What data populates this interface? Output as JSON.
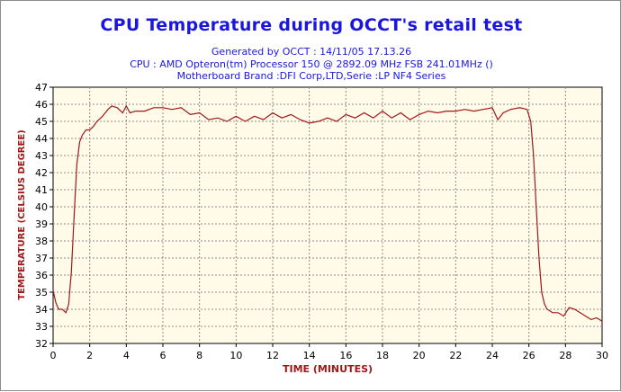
{
  "header": {
    "title": "CPU Temperature during OCCT's retail test",
    "line1": "Generated by OCCT : 14/11/05 17.13.26",
    "line2": "CPU : AMD Opteron(tm) Processor 150     @ 2892.09 MHz FSB 241.01MHz ()",
    "line3": "Motherboard Brand :DFI Corp,LTD,Serie :LP NF4 Series"
  },
  "colors": {
    "title": "#1a16e0",
    "axis_label": "#a01818",
    "series": "#a01818",
    "plot_background": "#fffbe8",
    "grid": "#8c8c8c"
  },
  "chart_data": {
    "type": "line",
    "title": "CPU Temperature during OCCT's retail test",
    "xlabel": "TIME (MINUTES)",
    "ylabel": "TEMPERATURE (CELSIUS DEGREE)",
    "xlim": [
      0,
      30
    ],
    "ylim": [
      32,
      47
    ],
    "xticks": [
      0,
      2,
      4,
      6,
      8,
      10,
      12,
      14,
      16,
      18,
      20,
      22,
      24,
      26,
      28,
      30
    ],
    "yticks": [
      32,
      33,
      34,
      35,
      36,
      37,
      38,
      39,
      40,
      41,
      42,
      43,
      44,
      45,
      46,
      47
    ],
    "grid": true,
    "series": [
      {
        "x": [
          0,
          0.15,
          0.3,
          0.5,
          0.7,
          0.85,
          1.0,
          1.15,
          1.3,
          1.45,
          1.6,
          1.8,
          2.0,
          2.2,
          2.4,
          2.7,
          3.0,
          3.2,
          3.5,
          3.8,
          4.0,
          4.2,
          4.5,
          5.0,
          5.5,
          6.0,
          6.5,
          7.0,
          7.5,
          8.0,
          8.5,
          9.0,
          9.5,
          10.0,
          10.5,
          11.0,
          11.5,
          12.0,
          12.5,
          13.0,
          13.5,
          14.0,
          14.5,
          15.0,
          15.5,
          16.0,
          16.5,
          17.0,
          17.5,
          18.0,
          18.5,
          19.0,
          19.5,
          20.0,
          20.5,
          21.0,
          21.5,
          22.0,
          22.5,
          23.0,
          23.5,
          24.0,
          24.3,
          24.6,
          25.0,
          25.5,
          25.9,
          26.1,
          26.25,
          26.4,
          26.55,
          26.7,
          26.85,
          27.0,
          27.3,
          27.6,
          27.9,
          28.2,
          28.5,
          28.8,
          29.1,
          29.4,
          29.7,
          30.0
        ],
        "y": [
          35.1,
          34.4,
          34.0,
          34.0,
          33.8,
          34.3,
          36.2,
          39.5,
          42.5,
          43.8,
          44.2,
          44.5,
          44.5,
          44.7,
          45.0,
          45.3,
          45.7,
          45.9,
          45.8,
          45.5,
          45.9,
          45.5,
          45.6,
          45.6,
          45.8,
          45.8,
          45.7,
          45.8,
          45.4,
          45.5,
          45.1,
          45.2,
          45.0,
          45.3,
          45.0,
          45.3,
          45.1,
          45.5,
          45.2,
          45.4,
          45.1,
          44.9,
          45.0,
          45.2,
          45.0,
          45.4,
          45.2,
          45.5,
          45.2,
          45.6,
          45.2,
          45.5,
          45.1,
          45.4,
          45.6,
          45.5,
          45.6,
          45.6,
          45.7,
          45.6,
          45.7,
          45.8,
          45.1,
          45.5,
          45.7,
          45.8,
          45.7,
          45.0,
          43.0,
          40.0,
          37.0,
          35.0,
          34.3,
          34.0,
          33.8,
          33.8,
          33.6,
          34.1,
          34.0,
          33.8,
          33.6,
          33.4,
          33.5,
          33.3
        ]
      }
    ]
  }
}
